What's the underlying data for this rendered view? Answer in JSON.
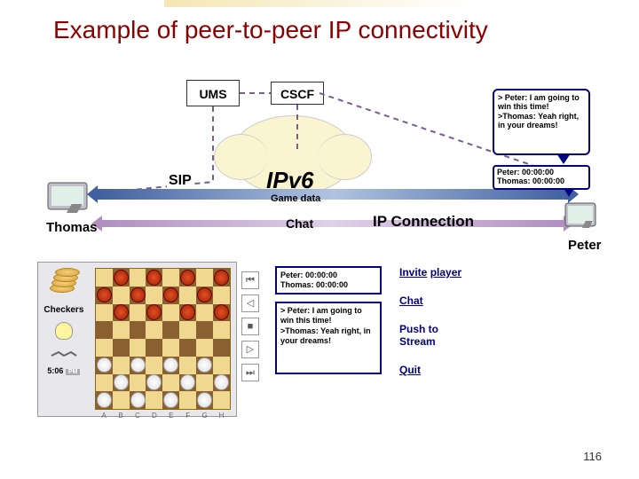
{
  "title": "Example of peer-to-peer IP connectivity",
  "boxes": {
    "ums": "UMS",
    "cscf": "CSCF"
  },
  "labels": {
    "sip": "SIP",
    "ipv6": "IPv6",
    "gamedata": "Game data",
    "chat": "Chat",
    "ipconn": "IP Connection",
    "thomas": "Thomas",
    "peter": "Peter"
  },
  "speech": {
    "top_line1": "> Peter: I am going to win this time!",
    "top_line2": ">Thomas: Yeah right, in your dreams!",
    "score1": "Peter: 00:00:00",
    "score2": "Thomas: 00:00:00"
  },
  "chatboxes": {
    "b1_l1": "Peter: 00:00:00",
    "b1_l2": "Thomas: 00:00:00",
    "b2_l1": "> Peter: I am going to win this time!",
    "b2_l2": ">Thomas: Yeah right, in your dreams!"
  },
  "links": {
    "invite1": "Invite",
    "invite2": "player",
    "chat": "Chat",
    "push": "Push to Stream",
    "quit": "Quit"
  },
  "game": {
    "name": "Checkers",
    "time": "5:06",
    "ampm": "PM",
    "letters": [
      "A",
      "B",
      "C",
      "D",
      "E",
      "F",
      "G",
      "H"
    ]
  },
  "controls": [
    "⏮",
    "◁",
    "■",
    "▷",
    "⏭"
  ],
  "slide_number": "116",
  "colors": {
    "title": "#8b0000",
    "box_border": "#000080",
    "cloud_fill": "#faf5d0",
    "dash_stroke": "#7a5c8f",
    "board_light": "#f0d890",
    "board_dark": "#8b6030",
    "piece_red": "#e05028",
    "piece_white": "#ffffff",
    "arrow_blue": "#4060a0",
    "arrow_purple": "#b090c0"
  },
  "board_layout": {
    "rows": 8,
    "cols": 8,
    "red_rows": [
      0,
      1,
      2
    ],
    "white_rows": [
      5,
      6,
      7
    ]
  }
}
